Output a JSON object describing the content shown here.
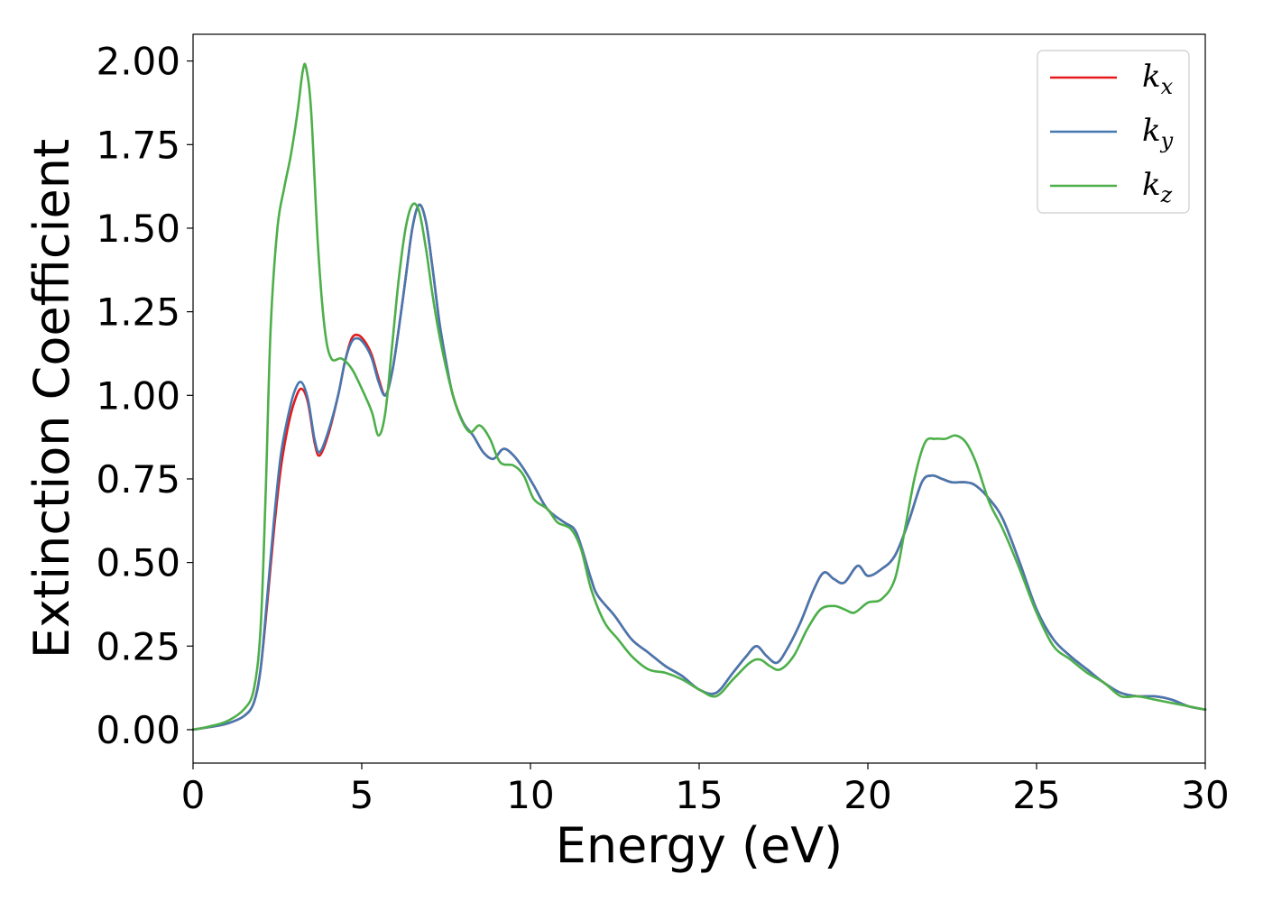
{
  "chart_data": {
    "type": "line",
    "title": "",
    "xlabel": "Energy (eV)",
    "ylabel": "Extinction Coefficient",
    "xlim": [
      0,
      30
    ],
    "ylim": [
      -0.1,
      2.08
    ],
    "xticks": [
      {
        "value": 0,
        "label": "0"
      },
      {
        "value": 5,
        "label": "5"
      },
      {
        "value": 10,
        "label": "10"
      },
      {
        "value": 15,
        "label": "15"
      },
      {
        "value": 20,
        "label": "20"
      },
      {
        "value": 25,
        "label": "25"
      },
      {
        "value": 30,
        "label": "30"
      }
    ],
    "yticks": [
      {
        "value": 0.0,
        "label": "0.00"
      },
      {
        "value": 0.25,
        "label": "0.25"
      },
      {
        "value": 0.5,
        "label": "0.50"
      },
      {
        "value": 0.75,
        "label": "0.75"
      },
      {
        "value": 1.0,
        "label": "1.00"
      },
      {
        "value": 1.25,
        "label": "1.25"
      },
      {
        "value": 1.5,
        "label": "1.50"
      },
      {
        "value": 1.75,
        "label": "1.75"
      },
      {
        "value": 2.0,
        "label": "2.00"
      }
    ],
    "grid": false,
    "legend_position": "top-right",
    "series": [
      {
        "name": "k",
        "subscript": "x",
        "color": "#e41a1c",
        "points": [
          [
            0,
            0
          ],
          [
            0.5,
            0.008
          ],
          [
            1,
            0.018
          ],
          [
            1.5,
            0.04
          ],
          [
            1.8,
            0.08
          ],
          [
            2,
            0.18
          ],
          [
            2.2,
            0.38
          ],
          [
            2.4,
            0.6
          ],
          [
            2.6,
            0.78
          ],
          [
            2.8,
            0.9
          ],
          [
            3,
            0.98
          ],
          [
            3.2,
            1.02
          ],
          [
            3.4,
            0.98
          ],
          [
            3.6,
            0.86
          ],
          [
            3.75,
            0.82
          ],
          [
            4,
            0.88
          ],
          [
            4.3,
            1.0
          ],
          [
            4.5,
            1.1
          ],
          [
            4.7,
            1.17
          ],
          [
            4.9,
            1.18
          ],
          [
            5.1,
            1.16
          ],
          [
            5.3,
            1.12
          ],
          [
            5.5,
            1.05
          ],
          [
            5.7,
            1.0
          ],
          [
            5.9,
            1.07
          ],
          [
            6.1,
            1.2
          ],
          [
            6.3,
            1.35
          ],
          [
            6.5,
            1.5
          ],
          [
            6.7,
            1.57
          ],
          [
            6.9,
            1.52
          ],
          [
            7.1,
            1.38
          ],
          [
            7.3,
            1.22
          ],
          [
            7.5,
            1.1
          ],
          [
            7.7,
            1.0
          ],
          [
            8,
            0.92
          ],
          [
            8.3,
            0.88
          ],
          [
            8.6,
            0.83
          ],
          [
            8.9,
            0.81
          ],
          [
            9.2,
            0.84
          ],
          [
            9.5,
            0.82
          ],
          [
            9.8,
            0.78
          ],
          [
            10.1,
            0.73
          ],
          [
            10.5,
            0.66
          ],
          [
            11,
            0.62
          ],
          [
            11.3,
            0.6
          ],
          [
            11.5,
            0.55
          ],
          [
            11.8,
            0.45
          ],
          [
            12,
            0.4
          ],
          [
            12.5,
            0.34
          ],
          [
            13,
            0.27
          ],
          [
            13.5,
            0.23
          ],
          [
            14,
            0.19
          ],
          [
            14.5,
            0.16
          ],
          [
            15,
            0.12
          ],
          [
            15.5,
            0.11
          ],
          [
            16,
            0.17
          ],
          [
            16.4,
            0.22
          ],
          [
            16.7,
            0.25
          ],
          [
            17,
            0.22
          ],
          [
            17.3,
            0.2
          ],
          [
            17.6,
            0.24
          ],
          [
            18,
            0.32
          ],
          [
            18.4,
            0.42
          ],
          [
            18.7,
            0.47
          ],
          [
            19,
            0.45
          ],
          [
            19.3,
            0.44
          ],
          [
            19.7,
            0.49
          ],
          [
            20,
            0.46
          ],
          [
            20.4,
            0.48
          ],
          [
            20.8,
            0.52
          ],
          [
            21.2,
            0.62
          ],
          [
            21.6,
            0.74
          ],
          [
            21.9,
            0.76
          ],
          [
            22.2,
            0.75
          ],
          [
            22.5,
            0.74
          ],
          [
            22.9,
            0.74
          ],
          [
            23.2,
            0.73
          ],
          [
            23.6,
            0.69
          ],
          [
            24,
            0.63
          ],
          [
            24.5,
            0.5
          ],
          [
            25,
            0.36
          ],
          [
            25.5,
            0.27
          ],
          [
            26,
            0.22
          ],
          [
            26.5,
            0.18
          ],
          [
            27,
            0.14
          ],
          [
            27.5,
            0.11
          ],
          [
            28,
            0.1
          ],
          [
            28.5,
            0.1
          ],
          [
            29,
            0.09
          ],
          [
            29.5,
            0.07
          ],
          [
            30,
            0.06
          ]
        ]
      },
      {
        "name": "k",
        "subscript": "y",
        "color": "#4678b0",
        "points": [
          [
            0,
            0
          ],
          [
            0.5,
            0.008
          ],
          [
            1,
            0.018
          ],
          [
            1.5,
            0.04
          ],
          [
            1.8,
            0.08
          ],
          [
            2,
            0.18
          ],
          [
            2.2,
            0.4
          ],
          [
            2.4,
            0.63
          ],
          [
            2.6,
            0.82
          ],
          [
            2.8,
            0.93
          ],
          [
            3,
            1.01
          ],
          [
            3.2,
            1.04
          ],
          [
            3.4,
            0.99
          ],
          [
            3.6,
            0.87
          ],
          [
            3.75,
            0.83
          ],
          [
            4,
            0.89
          ],
          [
            4.3,
            1.0
          ],
          [
            4.5,
            1.1
          ],
          [
            4.7,
            1.16
          ],
          [
            4.9,
            1.17
          ],
          [
            5.1,
            1.15
          ],
          [
            5.3,
            1.11
          ],
          [
            5.5,
            1.04
          ],
          [
            5.7,
            1.0
          ],
          [
            5.9,
            1.07
          ],
          [
            6.1,
            1.2
          ],
          [
            6.3,
            1.35
          ],
          [
            6.5,
            1.5
          ],
          [
            6.7,
            1.57
          ],
          [
            6.9,
            1.52
          ],
          [
            7.1,
            1.38
          ],
          [
            7.3,
            1.22
          ],
          [
            7.5,
            1.1
          ],
          [
            7.7,
            1.0
          ],
          [
            8,
            0.92
          ],
          [
            8.3,
            0.88
          ],
          [
            8.6,
            0.83
          ],
          [
            8.9,
            0.81
          ],
          [
            9.2,
            0.84
          ],
          [
            9.5,
            0.82
          ],
          [
            9.8,
            0.78
          ],
          [
            10.1,
            0.73
          ],
          [
            10.5,
            0.66
          ],
          [
            11,
            0.62
          ],
          [
            11.3,
            0.6
          ],
          [
            11.5,
            0.55
          ],
          [
            11.8,
            0.45
          ],
          [
            12,
            0.4
          ],
          [
            12.5,
            0.34
          ],
          [
            13,
            0.27
          ],
          [
            13.5,
            0.23
          ],
          [
            14,
            0.19
          ],
          [
            14.5,
            0.16
          ],
          [
            15,
            0.12
          ],
          [
            15.5,
            0.11
          ],
          [
            16,
            0.17
          ],
          [
            16.4,
            0.22
          ],
          [
            16.7,
            0.25
          ],
          [
            17,
            0.22
          ],
          [
            17.3,
            0.2
          ],
          [
            17.6,
            0.24
          ],
          [
            18,
            0.32
          ],
          [
            18.4,
            0.42
          ],
          [
            18.7,
            0.47
          ],
          [
            19,
            0.45
          ],
          [
            19.3,
            0.44
          ],
          [
            19.7,
            0.49
          ],
          [
            20,
            0.46
          ],
          [
            20.4,
            0.48
          ],
          [
            20.8,
            0.52
          ],
          [
            21.2,
            0.62
          ],
          [
            21.6,
            0.74
          ],
          [
            21.9,
            0.76
          ],
          [
            22.2,
            0.75
          ],
          [
            22.5,
            0.74
          ],
          [
            22.9,
            0.74
          ],
          [
            23.2,
            0.73
          ],
          [
            23.6,
            0.69
          ],
          [
            24,
            0.63
          ],
          [
            24.5,
            0.5
          ],
          [
            25,
            0.36
          ],
          [
            25.5,
            0.27
          ],
          [
            26,
            0.22
          ],
          [
            26.5,
            0.18
          ],
          [
            27,
            0.14
          ],
          [
            27.5,
            0.11
          ],
          [
            28,
            0.1
          ],
          [
            28.5,
            0.1
          ],
          [
            29,
            0.09
          ],
          [
            29.5,
            0.07
          ],
          [
            30,
            0.06
          ]
        ]
      },
      {
        "name": "k",
        "subscript": "z",
        "color": "#4daf4a",
        "points": [
          [
            0,
            0
          ],
          [
            0.5,
            0.01
          ],
          [
            1,
            0.025
          ],
          [
            1.5,
            0.06
          ],
          [
            1.8,
            0.12
          ],
          [
            2,
            0.3
          ],
          [
            2.15,
            0.7
          ],
          [
            2.3,
            1.2
          ],
          [
            2.5,
            1.5
          ],
          [
            2.7,
            1.62
          ],
          [
            2.9,
            1.72
          ],
          [
            3.1,
            1.85
          ],
          [
            3.25,
            1.97
          ],
          [
            3.35,
            1.98
          ],
          [
            3.5,
            1.85
          ],
          [
            3.7,
            1.45
          ],
          [
            3.9,
            1.2
          ],
          [
            4.1,
            1.11
          ],
          [
            4.4,
            1.11
          ],
          [
            4.7,
            1.08
          ],
          [
            5,
            1.02
          ],
          [
            5.3,
            0.95
          ],
          [
            5.5,
            0.88
          ],
          [
            5.7,
            0.95
          ],
          [
            5.9,
            1.15
          ],
          [
            6.1,
            1.35
          ],
          [
            6.3,
            1.5
          ],
          [
            6.5,
            1.57
          ],
          [
            6.7,
            1.55
          ],
          [
            6.9,
            1.44
          ],
          [
            7.1,
            1.3
          ],
          [
            7.3,
            1.18
          ],
          [
            7.6,
            1.04
          ],
          [
            7.9,
            0.94
          ],
          [
            8.2,
            0.89
          ],
          [
            8.5,
            0.91
          ],
          [
            8.8,
            0.87
          ],
          [
            9.1,
            0.8
          ],
          [
            9.5,
            0.79
          ],
          [
            9.8,
            0.76
          ],
          [
            10.1,
            0.69
          ],
          [
            10.5,
            0.66
          ],
          [
            10.8,
            0.62
          ],
          [
            11.2,
            0.6
          ],
          [
            11.5,
            0.54
          ],
          [
            11.8,
            0.42
          ],
          [
            12.2,
            0.32
          ],
          [
            12.6,
            0.27
          ],
          [
            13,
            0.22
          ],
          [
            13.5,
            0.18
          ],
          [
            14,
            0.17
          ],
          [
            14.5,
            0.15
          ],
          [
            15,
            0.12
          ],
          [
            15.5,
            0.1
          ],
          [
            16,
            0.15
          ],
          [
            16.5,
            0.2
          ],
          [
            16.8,
            0.21
          ],
          [
            17.1,
            0.19
          ],
          [
            17.4,
            0.18
          ],
          [
            17.8,
            0.22
          ],
          [
            18.2,
            0.3
          ],
          [
            18.6,
            0.36
          ],
          [
            19,
            0.37
          ],
          [
            19.3,
            0.36
          ],
          [
            19.6,
            0.35
          ],
          [
            20,
            0.38
          ],
          [
            20.4,
            0.39
          ],
          [
            20.8,
            0.45
          ],
          [
            21.1,
            0.6
          ],
          [
            21.4,
            0.76
          ],
          [
            21.7,
            0.86
          ],
          [
            22,
            0.87
          ],
          [
            22.3,
            0.87
          ],
          [
            22.6,
            0.88
          ],
          [
            22.9,
            0.86
          ],
          [
            23.2,
            0.8
          ],
          [
            23.6,
            0.68
          ],
          [
            24,
            0.6
          ],
          [
            24.5,
            0.48
          ],
          [
            25,
            0.35
          ],
          [
            25.5,
            0.25
          ],
          [
            26,
            0.21
          ],
          [
            26.5,
            0.17
          ],
          [
            27,
            0.14
          ],
          [
            27.5,
            0.1
          ],
          [
            28,
            0.1
          ],
          [
            28.5,
            0.09
          ],
          [
            29,
            0.08
          ],
          [
            29.5,
            0.07
          ],
          [
            30,
            0.06
          ]
        ]
      }
    ]
  }
}
